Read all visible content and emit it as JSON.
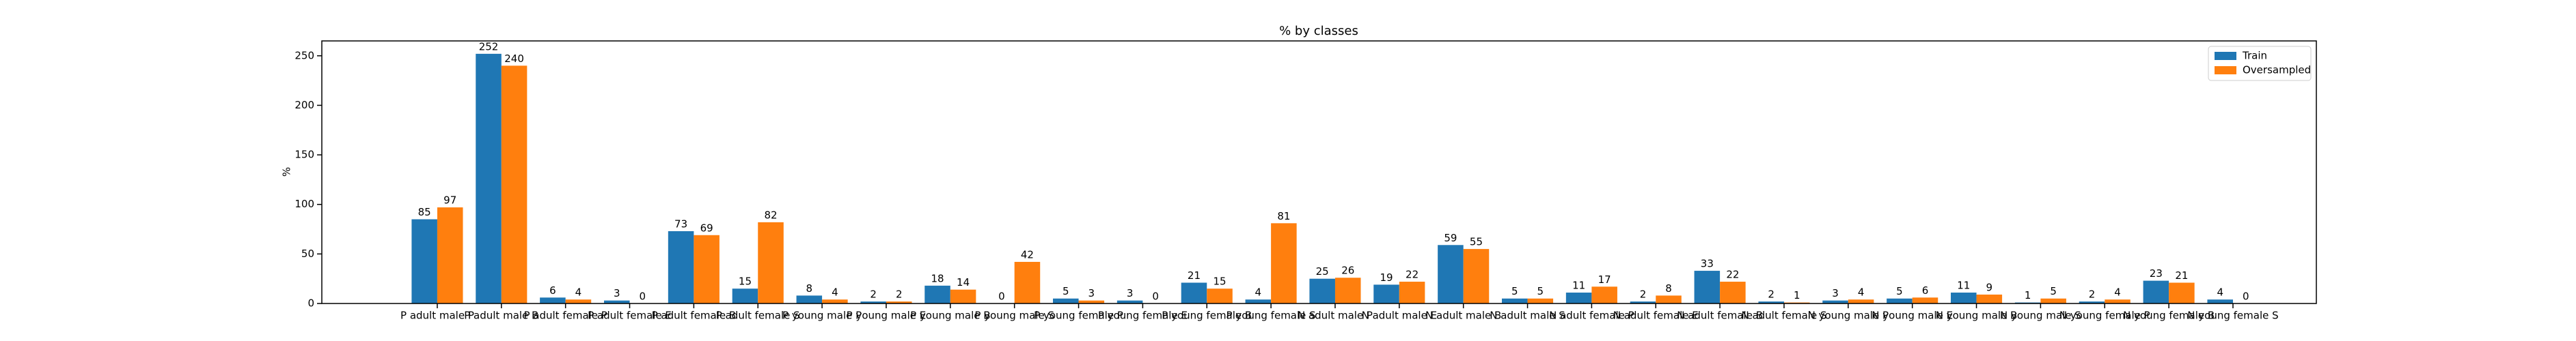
{
  "chart_data": {
    "type": "bar",
    "title": "% by classes",
    "ylabel": "%",
    "categories": [
      "P adult male P",
      "P adult male B",
      "P adult female P",
      "P adult female E",
      "P adult female B",
      "P adult female S",
      "P young male P",
      "P young male E",
      "P young male B",
      "P young male S",
      "P young female P",
      "P young female E",
      "P young female B",
      "P young female S",
      "N adult male P",
      "N adult male E",
      "N adult male B",
      "N adult male S",
      "N adult female P",
      "N adult female E",
      "N adult female B",
      "N adult female S",
      "N young male P",
      "N young male E",
      "N young male B",
      "N young male S",
      "N young female P",
      "N young female B",
      "N young female S"
    ],
    "series": [
      {
        "name": "Train",
        "color": "#1f77b4",
        "values": [
          85,
          252,
          6,
          3,
          73,
          15,
          8,
          2,
          18,
          0,
          5,
          3,
          21,
          4,
          25,
          19,
          59,
          5,
          11,
          2,
          33,
          2,
          3,
          5,
          11,
          1,
          2,
          23,
          4
        ]
      },
      {
        "name": "Oversampled",
        "color": "#ff7f0e",
        "values": [
          97,
          240,
          4,
          0,
          69,
          82,
          4,
          2,
          14,
          42,
          3,
          0,
          15,
          81,
          26,
          22,
          55,
          5,
          17,
          8,
          22,
          1,
          4,
          6,
          9,
          5,
          4,
          21,
          0
        ]
      }
    ],
    "ylim": [
      0,
      265
    ],
    "yticks": [
      0,
      50,
      100,
      150,
      200,
      250
    ],
    "legend": "upper right"
  }
}
